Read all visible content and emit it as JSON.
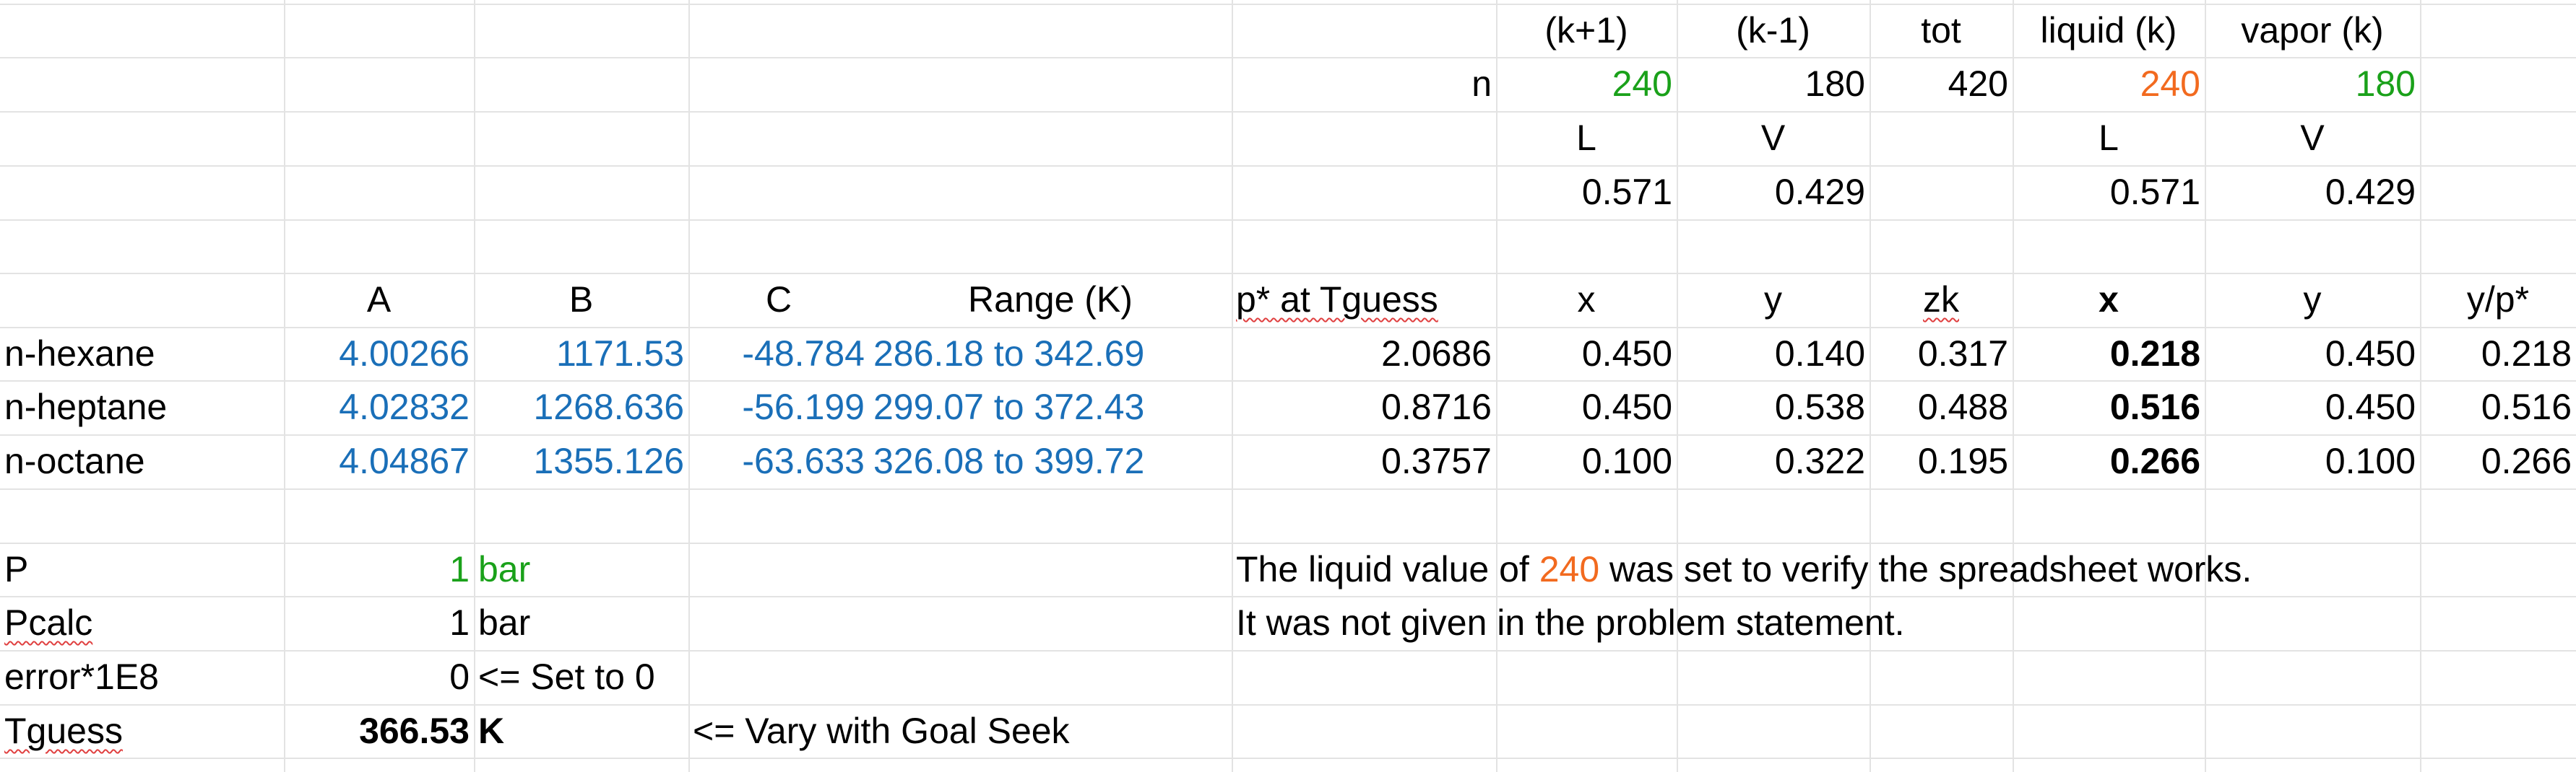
{
  "header_row1": {
    "k_plus_1": "(k+1)",
    "k_minus_1": "(k-1)",
    "tot": "tot",
    "liquid_k": "liquid (k)",
    "vapor_k": "vapor (k)"
  },
  "header_row2": {
    "n_label": "n",
    "k_plus_1": "240",
    "k_minus_1": "180",
    "tot": "420",
    "liquid_k": "240",
    "vapor_k": "180"
  },
  "header_row3": {
    "L1": "L",
    "V1": "V",
    "L2": "L",
    "V2": "V"
  },
  "header_row4": {
    "L1": "0.571",
    "V1": "0.429",
    "L2": "0.571",
    "V2": "0.429"
  },
  "columns": {
    "A": "A",
    "B": "B",
    "C": "C",
    "range": "Range (K)",
    "pstar": "p* at Tguess",
    "x": "x",
    "y": "y",
    "zk": "zk",
    "x2": "x",
    "y2": "y",
    "ypstar": "y/p*"
  },
  "rows": [
    {
      "name": "n-hexane",
      "A": "4.00266",
      "B": "1171.53",
      "C": "-48.784",
      "range": "286.18 to 342.69",
      "pstar": "2.0686",
      "x": "0.450",
      "y": "0.140",
      "zk": "0.317",
      "x2": "0.218",
      "y2": "0.450",
      "ypstar": "0.218"
    },
    {
      "name": "n-heptane",
      "A": "4.02832",
      "B": "1268.636",
      "C": "-56.199",
      "range": "299.07 to 372.43",
      "pstar": "0.8716",
      "x": "0.450",
      "y": "0.538",
      "zk": "0.488",
      "x2": "0.516",
      "y2": "0.450",
      "ypstar": "0.516"
    },
    {
      "name": "n-octane",
      "A": "4.04867",
      "B": "1355.126",
      "C": "-63.633",
      "range": "326.08 to 399.72",
      "pstar": "0.3757",
      "x": "0.100",
      "y": "0.322",
      "zk": "0.195",
      "x2": "0.266",
      "y2": "0.100",
      "ypstar": "0.266"
    }
  ],
  "params": {
    "P_label": "P",
    "P_value": "1",
    "P_unit": "bar",
    "Pcalc_label": "Pcalc",
    "Pcalc_value": "1",
    "Pcalc_unit": "bar",
    "error_label": "error*1E8",
    "error_value": "0",
    "error_note": "<= Set to 0",
    "Tguess_label": "Tguess",
    "Tguess_value": "366.53",
    "Tguess_unit": "K",
    "Tguess_note": "<= Vary with Goal Seek"
  },
  "note": {
    "line1_pre": "The liquid value of ",
    "line1_value": "240",
    "line1_post": " was set to verify the spreadsheet works.",
    "line2": "It was not given in the problem statement."
  },
  "colors": {
    "blue": "#1a6fb8",
    "green": "#1aa11a",
    "orange": "#f26a1f",
    "gridline": "#e3e3e3"
  }
}
